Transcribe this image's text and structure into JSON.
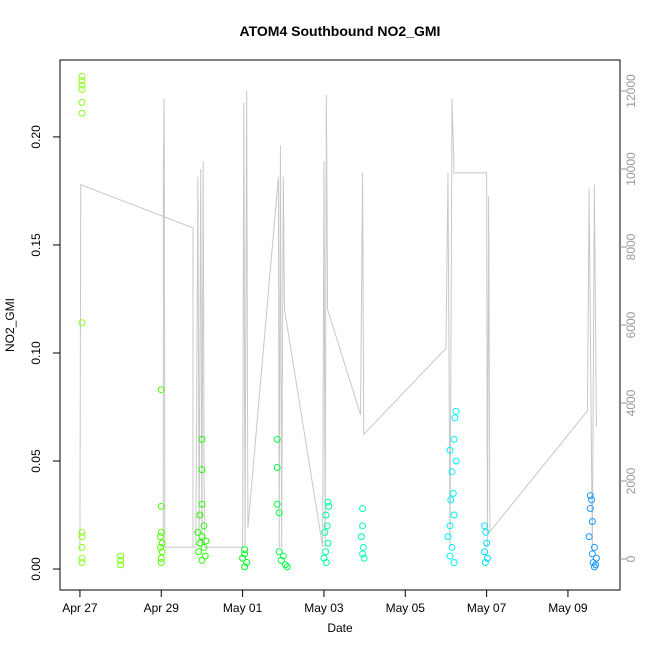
{
  "chart_data": {
    "type": "scatter",
    "title": "ATOM4 Southbound NO2_GMI",
    "xlabel": "Date",
    "ylabel": "NO2_GMI",
    "xlim": [
      -0.49,
      13.28
    ],
    "xticks": [
      {
        "value": 0,
        "label": "Apr 27"
      },
      {
        "value": 2,
        "label": "Apr 29"
      },
      {
        "value": 4,
        "label": "May 01"
      },
      {
        "value": 6,
        "label": "May 03"
      },
      {
        "value": 8,
        "label": "May 05"
      },
      {
        "value": 10,
        "label": "May 07"
      },
      {
        "value": 12,
        "label": "May 09"
      }
    ],
    "ylim": [
      -0.0097,
      0.2356
    ],
    "yticks": [
      {
        "value": 0,
        "label": "0.00"
      },
      {
        "value": 0.05,
        "label": "0.05"
      },
      {
        "value": 0.1,
        "label": "0.10"
      },
      {
        "value": 0.15,
        "label": "0.15"
      },
      {
        "value": 0.2,
        "label": "0.20"
      }
    ],
    "y2lim": [
      -795,
      12795
    ],
    "y2ticks": [
      0,
      2000,
      4000,
      6000,
      8000,
      10000,
      12000
    ],
    "y2color": "#999999",
    "series": [
      {
        "type": "line",
        "axis": "y2",
        "color": "#c8c8c8",
        "x": [
          0,
          0.02,
          0.04,
          2.78,
          2.78,
          2.05,
          2.05,
          2.07,
          2.09,
          2.85,
          2.9,
          2.93,
          2.97,
          3.0,
          3.03,
          3.06,
          4.0,
          4.03,
          4.06,
          4.1,
          4.13,
          4.88,
          4.9,
          4.93,
          4.96,
          5.0,
          5.03,
          5.97,
          6.0,
          6.03,
          6.06,
          6.09,
          6.9,
          6.95,
          6.98,
          9.0,
          9.05,
          9.1,
          9.15,
          9.2,
          10.0,
          10.02,
          10.05,
          10.08,
          12.48,
          12.52,
          12.6,
          12.65,
          12.7
        ],
        "values": [
          200,
          9600,
          9590,
          8490,
          300,
          300,
          10000,
          11800,
          300,
          300,
          9800,
          300,
          10000,
          300,
          10200,
          300,
          300,
          11700,
          300,
          12000,
          800,
          9800,
          300,
          10600,
          300,
          9800,
          6400,
          300,
          10200,
          300,
          11900,
          6400,
          3700,
          9900,
          3200,
          5400,
          9900,
          300,
          11800,
          9900,
          9900,
          300,
          9300,
          700,
          3800,
          9500,
          200,
          9600,
          3400
        ]
      },
      {
        "type": "points",
        "axis": "y",
        "color": "#8cff1a",
        "x": [
          0.05,
          0.05,
          0.05,
          0.05,
          0.05,
          0.05,
          0.05,
          0.05,
          0.05,
          0.05,
          0.05,
          0.05
        ],
        "values": [
          0.228,
          0.226,
          0.224,
          0.222,
          0.216,
          0.211,
          0.114,
          0.017,
          0.015,
          0.01,
          0.005,
          0.003
        ]
      },
      {
        "type": "points",
        "axis": "y",
        "color": "#77ff0d",
        "x": [
          1.0,
          1.0,
          1.0
        ],
        "values": [
          0.006,
          0.004,
          0.002
        ]
      },
      {
        "type": "points",
        "axis": "y",
        "color": "#55ff00",
        "x": [
          2.0,
          2.0,
          2.0,
          1.98,
          2.02,
          1.98,
          2.02,
          2.0,
          2.0
        ],
        "values": [
          0.083,
          0.029,
          0.017,
          0.015,
          0.012,
          0.01,
          0.008,
          0.005,
          0.003
        ]
      },
      {
        "type": "points",
        "axis": "y",
        "color": "#22ff00",
        "x": [
          3.0,
          3.0,
          3.0,
          2.95,
          3.05,
          2.9,
          3.0,
          3.1,
          2.95,
          3.05,
          2.92,
          3.08,
          3.0
        ],
        "values": [
          0.06,
          0.046,
          0.03,
          0.025,
          0.02,
          0.017,
          0.015,
          0.013,
          0.012,
          0.01,
          0.008,
          0.006,
          0.004
        ]
      },
      {
        "type": "points",
        "axis": "y",
        "color": "#00ff22",
        "x": [
          4.05,
          4.05,
          4.0,
          4.1,
          4.05
        ],
        "values": [
          0.009,
          0.007,
          0.005,
          0.003,
          0.001
        ]
      },
      {
        "type": "points",
        "axis": "y",
        "color": "#00ff44",
        "x": [
          4.85,
          4.85,
          4.85,
          4.9,
          4.9,
          5.0,
          4.95,
          5.05,
          5.1
        ],
        "values": [
          0.06,
          0.047,
          0.03,
          0.026,
          0.008,
          0.006,
          0.004,
          0.002,
          0.001
        ]
      },
      {
        "type": "points",
        "axis": "y",
        "color": "#00ff99",
        "x": [
          6.1,
          6.12,
          6.05,
          6.08,
          6.02,
          6.1,
          6.04,
          6.0,
          6.06
        ],
        "values": [
          0.031,
          0.029,
          0.025,
          0.02,
          0.017,
          0.012,
          0.008,
          0.005,
          0.003
        ]
      },
      {
        "type": "points",
        "axis": "y",
        "color": "#00ffb0",
        "x": [
          6.95,
          6.95,
          6.92,
          6.97,
          6.95,
          6.99
        ],
        "values": [
          0.028,
          0.02,
          0.015,
          0.01,
          0.007,
          0.005
        ]
      },
      {
        "type": "points",
        "axis": "y",
        "color": "#00f0ff",
        "x": [
          9.25,
          9.22,
          9.2,
          9.1,
          9.25,
          9.15,
          9.18,
          9.12,
          9.2,
          9.1,
          9.05,
          9.15,
          9.1,
          9.2
        ],
        "values": [
          0.073,
          0.07,
          0.06,
          0.055,
          0.05,
          0.045,
          0.035,
          0.032,
          0.025,
          0.02,
          0.015,
          0.01,
          0.006,
          0.003
        ]
      },
      {
        "type": "points",
        "axis": "y",
        "color": "#00e0ff",
        "x": [
          9.95,
          9.98,
          10.0,
          9.95,
          10.02,
          9.97
        ],
        "values": [
          0.02,
          0.017,
          0.012,
          0.008,
          0.005,
          0.003
        ]
      },
      {
        "type": "points",
        "axis": "y",
        "color": "#1a99ff",
        "x": [
          12.55,
          12.58,
          12.55,
          12.6,
          12.52,
          12.65,
          12.6,
          12.7,
          12.62,
          12.68,
          12.65
        ],
        "values": [
          0.034,
          0.032,
          0.028,
          0.022,
          0.015,
          0.01,
          0.007,
          0.005,
          0.003,
          0.002,
          0.001
        ]
      }
    ]
  }
}
